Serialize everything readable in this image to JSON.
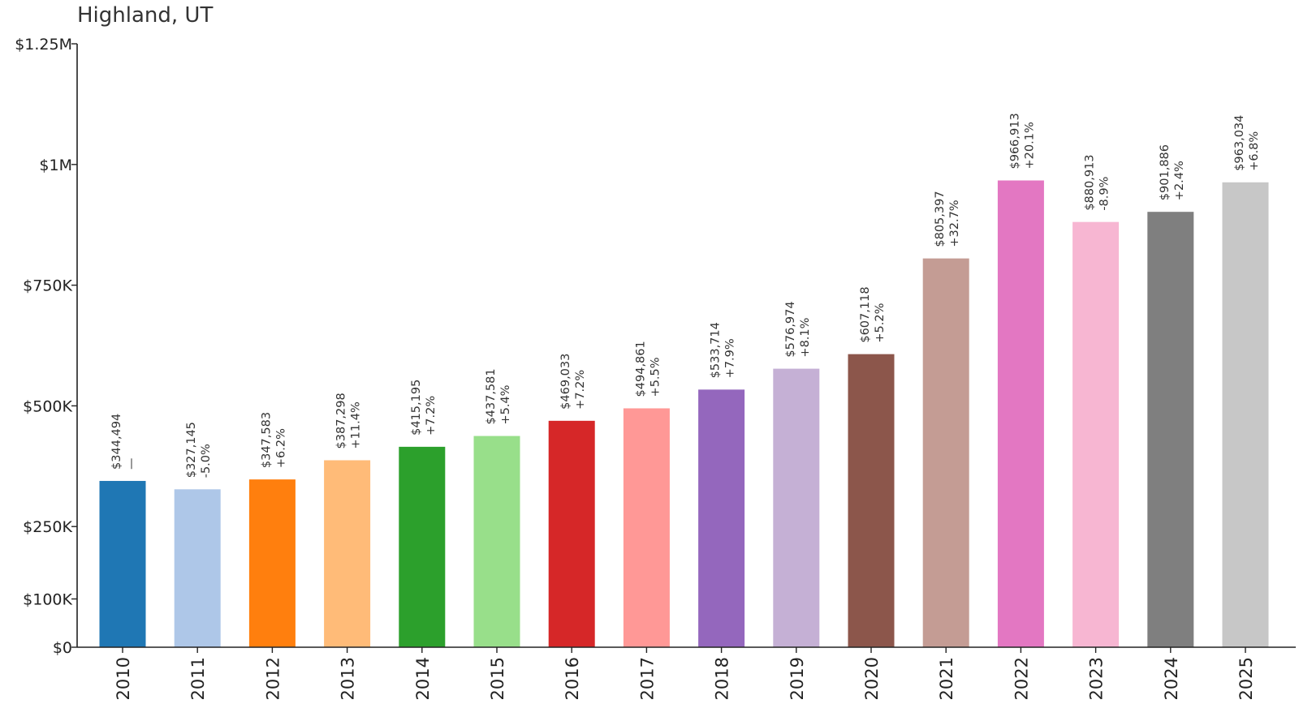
{
  "chart_data": {
    "type": "bar",
    "title": "Highland, UT",
    "xlabel": "",
    "ylabel": "",
    "ylim": [
      0,
      1250000
    ],
    "grid": false,
    "yticks": [
      {
        "value": 0,
        "label": "$0"
      },
      {
        "value": 100000,
        "label": "$100K"
      },
      {
        "value": 250000,
        "label": "$250K"
      },
      {
        "value": 500000,
        "label": "$500K"
      },
      {
        "value": 750000,
        "label": "$750K"
      },
      {
        "value": 1000000,
        "label": "$1M"
      },
      {
        "value": 1250000,
        "label": "$1.25M"
      }
    ],
    "categories": [
      "2010",
      "2011",
      "2012",
      "2013",
      "2014",
      "2015",
      "2016",
      "2017",
      "2018",
      "2019",
      "2020",
      "2021",
      "2022",
      "2023",
      "2024",
      "2025"
    ],
    "values": [
      344494,
      327145,
      347583,
      387298,
      415195,
      437581,
      469033,
      494861,
      533714,
      576974,
      607118,
      805397,
      966913,
      880913,
      901886,
      963034
    ],
    "value_labels": [
      "$344,494",
      "$327,145",
      "$347,583",
      "$387,298",
      "$415,195",
      "$437,581",
      "$469,033",
      "$494,861",
      "$533,714",
      "$576,974",
      "$607,118",
      "$805,397",
      "$966,913",
      "$880,913",
      "$901,886",
      "$963,034"
    ],
    "change_labels": [
      "—",
      "-5.0%",
      "+6.2%",
      "+11.4%",
      "+7.2%",
      "+5.4%",
      "+7.2%",
      "+5.5%",
      "+7.9%",
      "+8.1%",
      "+5.2%",
      "+32.7%",
      "+20.1%",
      "-8.9%",
      "+2.4%",
      "+6.8%"
    ],
    "colors": [
      "#1f77b4",
      "#aec7e8",
      "#ff7f0e",
      "#ffbb78",
      "#2ca02c",
      "#98df8a",
      "#d62728",
      "#ff9896",
      "#9467bd",
      "#c5b0d5",
      "#8c564b",
      "#c49c94",
      "#e377c2",
      "#f7b6d2",
      "#7f7f7f",
      "#c7c7c7"
    ]
  }
}
